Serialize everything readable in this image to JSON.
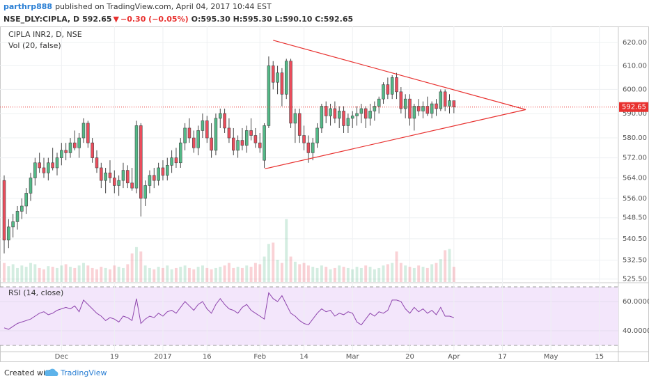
{
  "header": {
    "author": "parthrp888",
    "published": "published on TradingView.com, April 04, 2017 10:44 EST",
    "symbol": "NSE_DLY:CIPLA, D",
    "last": "592.65",
    "arrow": "▼",
    "change": "−0.30 (−0.05%)",
    "ohlc": "O:595.30 H:595.30 L:590.10 C:592.65"
  },
  "footer": {
    "created": "Created with",
    "brand": "TradingView"
  },
  "chart_data": {
    "type": "candlestick",
    "title": "CIPLA INR2, D, NSE",
    "volume_label": "Vol (20, false)",
    "rsi_label": "RSI (14, close)",
    "open": [
      563,
      540,
      545,
      547,
      551,
      553,
      558,
      564,
      570,
      568,
      566,
      570,
      568,
      572,
      575,
      574,
      578,
      576,
      580,
      586,
      578,
      572,
      568,
      563,
      566,
      564,
      561,
      563,
      567,
      562,
      560,
      585,
      556,
      561,
      565,
      563,
      568,
      565,
      569,
      572,
      570,
      578,
      584,
      580,
      576,
      583,
      587,
      580,
      575,
      588,
      590,
      584,
      580,
      575,
      579,
      577,
      583,
      581,
      578,
      571,
      585,
      610,
      603,
      607,
      598,
      612,
      586,
      590,
      581,
      578,
      574,
      578,
      584,
      593,
      589,
      592,
      588,
      591,
      585,
      588,
      589,
      590,
      592,
      588,
      591,
      593,
      596,
      602,
      598,
      605,
      599,
      592,
      596,
      588,
      593,
      591,
      593,
      590,
      594,
      592,
      599,
      593,
      595.3
    ],
    "high": [
      565,
      548,
      550,
      553,
      556,
      560,
      566,
      572,
      574,
      572,
      572,
      576,
      574,
      578,
      578,
      580,
      583,
      582,
      588,
      587,
      580,
      575,
      570,
      568,
      571,
      567,
      565,
      570,
      569,
      568,
      587,
      586,
      563,
      567,
      568,
      570,
      571,
      572,
      575,
      576,
      580,
      586,
      588,
      583,
      585,
      590,
      589,
      586,
      590,
      592,
      592,
      588,
      584,
      581,
      584,
      585,
      588,
      584,
      582,
      586,
      614,
      612,
      610,
      609,
      613,
      613,
      592,
      592,
      585,
      581,
      580,
      586,
      594,
      595,
      594,
      595,
      593,
      593,
      590,
      591,
      593,
      594,
      593,
      594,
      595,
      597,
      603,
      605,
      606,
      607,
      601,
      598,
      598,
      594,
      596,
      595,
      597,
      595,
      596,
      600,
      600,
      598,
      595.3
    ],
    "low": [
      535,
      537,
      541,
      544,
      548,
      550,
      555,
      561,
      566,
      564,
      563,
      567,
      565,
      569,
      571,
      572,
      575,
      572,
      578,
      576,
      570,
      566,
      560,
      558,
      562,
      558,
      557,
      560,
      560,
      559,
      558,
      549,
      553,
      558,
      560,
      561,
      563,
      563,
      566,
      568,
      568,
      575,
      578,
      574,
      573,
      580,
      578,
      572,
      573,
      584,
      582,
      578,
      573,
      572,
      575,
      574,
      579,
      576,
      574,
      568,
      584,
      600,
      598,
      593,
      596,
      584,
      578,
      578,
      575,
      570,
      571,
      576,
      582,
      586,
      585,
      586,
      584,
      582,
      582,
      584,
      585,
      586,
      584,
      585,
      587,
      590,
      594,
      596,
      596,
      596,
      590,
      588,
      585,
      583,
      589,
      588,
      589,
      588,
      589,
      591,
      591,
      590,
      590.1
    ],
    "close": [
      540,
      545,
      547,
      551,
      553,
      558,
      564,
      570,
      568,
      566,
      570,
      568,
      572,
      575,
      574,
      578,
      576,
      580,
      586,
      578,
      572,
      568,
      563,
      566,
      564,
      561,
      563,
      567,
      562,
      560,
      585,
      556,
      561,
      565,
      563,
      568,
      565,
      569,
      572,
      570,
      578,
      584,
      580,
      576,
      583,
      587,
      580,
      575,
      588,
      590,
      584,
      580,
      575,
      579,
      577,
      583,
      581,
      578,
      576,
      585,
      610,
      603,
      607,
      598,
      612,
      586,
      590,
      581,
      578,
      574,
      578,
      584,
      593,
      589,
      592,
      588,
      591,
      585,
      588,
      589,
      590,
      592,
      588,
      591,
      593,
      596,
      602,
      598,
      605,
      599,
      592,
      596,
      588,
      593,
      591,
      593,
      590,
      594,
      592,
      599,
      593,
      595.3,
      592.65
    ],
    "volume": [
      30,
      25,
      28,
      22,
      26,
      24,
      30,
      28,
      22,
      20,
      25,
      24,
      22,
      26,
      28,
      24,
      22,
      26,
      30,
      26,
      22,
      20,
      24,
      22,
      20,
      26,
      24,
      22,
      28,
      45,
      55,
      48,
      26,
      22,
      20,
      24,
      22,
      26,
      20,
      22,
      24,
      26,
      22,
      20,
      24,
      26,
      22,
      20,
      22,
      24,
      26,
      30,
      22,
      24,
      22,
      26,
      24,
      30,
      28,
      40,
      60,
      62,
      35,
      30,
      99,
      40,
      32,
      28,
      30,
      26,
      24,
      22,
      26,
      24,
      20,
      22,
      26,
      24,
      22,
      20,
      24,
      22,
      26,
      24,
      20,
      22,
      26,
      28,
      30,
      48,
      30,
      26,
      24,
      22,
      26,
      24,
      22,
      28,
      30,
      36,
      50,
      52,
      24
    ],
    "rsi": [
      42,
      41,
      43,
      45,
      46,
      47,
      48,
      50,
      52,
      53,
      51,
      52,
      54,
      55,
      56,
      55,
      57,
      53,
      61,
      58,
      55,
      52,
      50,
      47,
      49,
      48,
      46,
      50,
      49,
      47,
      62,
      45,
      48,
      50,
      49,
      52,
      50,
      53,
      54,
      52,
      56,
      60,
      57,
      54,
      58,
      60,
      55,
      52,
      58,
      62,
      58,
      55,
      54,
      52,
      56,
      58,
      54,
      52,
      50,
      48,
      66,
      62,
      60,
      64,
      58,
      52,
      50,
      47,
      45,
      44,
      48,
      52,
      55,
      53,
      54,
      50,
      52,
      51,
      53,
      52,
      46,
      44,
      48,
      52,
      50,
      53,
      52,
      54,
      61,
      61,
      60,
      55,
      52,
      56,
      53,
      55,
      52,
      54,
      51,
      56,
      50,
      50,
      49
    ],
    "colors": {
      "up": "#53b987",
      "down": "#eb4d5c",
      "rsi": "#8e44ad",
      "trend": "#e8312f"
    },
    "log": true,
    "grid": true,
    "ylim": [
      524.4,
      626.4
    ],
    "yticks": [
      {
        "value": 620,
        "label": "620.00"
      },
      {
        "value": 610,
        "label": "610.00"
      },
      {
        "value": 600,
        "label": "600.00"
      },
      {
        "value": 590,
        "label": "590.00"
      },
      {
        "value": 580,
        "label": "580.00"
      },
      {
        "value": 572,
        "label": "572.00"
      },
      {
        "value": 564,
        "label": "564.00"
      },
      {
        "value": 556,
        "label": "556.00"
      },
      {
        "value": 548.5,
        "label": "548.50"
      },
      {
        "value": 540.5,
        "label": "540.50"
      },
      {
        "value": 532.5,
        "label": "532.50"
      },
      {
        "value": 525.5,
        "label": "525.50"
      }
    ],
    "xlim": [
      -0.95,
      139.3
    ],
    "xticks": [
      {
        "value": 13,
        "label": "Dec"
      },
      {
        "value": 25,
        "label": "19"
      },
      {
        "value": 36,
        "label": "2017"
      },
      {
        "value": 46,
        "label": "16"
      },
      {
        "value": 58,
        "label": "Feb"
      },
      {
        "value": 68,
        "label": "14"
      },
      {
        "value": 79,
        "label": "Mar"
      },
      {
        "value": 92,
        "label": "20"
      },
      {
        "value": 102,
        "label": "Apr"
      },
      {
        "value": 113,
        "label": "17"
      },
      {
        "value": 124,
        "label": "May"
      },
      {
        "value": 135,
        "label": "15"
      }
    ],
    "volume_ylim": [
      0,
      400
    ],
    "rsi_ylim": [
      25.7,
      72.4
    ],
    "rsi_yticks": [
      {
        "value": 60,
        "label": "60.0000"
      },
      {
        "value": 40,
        "label": "40.0000"
      }
    ],
    "rsi_levels": [
      70,
      30
    ],
    "trendlines": [
      {
        "x": [
          61,
          118.3
        ],
        "y": [
          621,
          591.6
        ]
      },
      {
        "x": [
          59.1,
          118.3
        ],
        "y": [
          567.6,
          591.6
        ]
      }
    ]
  }
}
